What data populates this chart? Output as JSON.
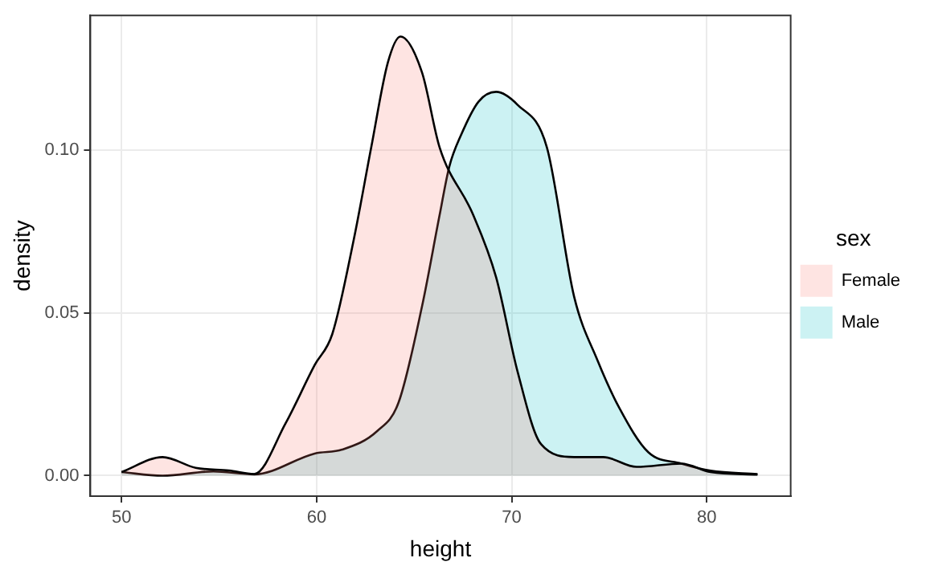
{
  "chart_data": {
    "type": "area",
    "xlabel": "height",
    "ylabel": "density",
    "legend_title": "sex",
    "legend": "right",
    "grid": true,
    "marker": "none",
    "line_style": "solid",
    "xlim": [
      48.4,
      84.3
    ],
    "ylim": [
      -0.0063,
      0.1415
    ],
    "xticks": [
      50,
      60,
      70,
      80
    ],
    "yticks": [
      {
        "value": 0,
        "label": "0.00"
      },
      {
        "value": 0.05,
        "label": "0.05"
      },
      {
        "value": 0.1,
        "label": "0.10"
      }
    ],
    "series": [
      {
        "name": "Female",
        "color": "#F8766D",
        "x": [
          50.0,
          52.1,
          53.8,
          55.5,
          56.8,
          58.4,
          59.9,
          60.8,
          61.9,
          62.8,
          63.65,
          64.3,
          65.4,
          66.3,
          68.0,
          69.2,
          70.3,
          71.5,
          73.2,
          74.7,
          76.4,
          78.7,
          80.2,
          82.6
        ],
        "values": [
          0.0011,
          0.0057,
          0.0024,
          0.0016,
          0.0005,
          0.016,
          0.034,
          0.0435,
          0.0725,
          0.101,
          0.127,
          0.135,
          0.124,
          0.101,
          0.0805,
          0.061,
          0.032,
          0.0097,
          0.0057,
          0.0057,
          0.0027,
          0.0037,
          0.0011,
          0.0003
        ]
      },
      {
        "name": "Male",
        "color": "#00BFC4",
        "x": [
          50.0,
          52.1,
          54.7,
          56.8,
          59.9,
          61.3,
          63.1,
          64.2,
          65.4,
          66.3,
          66.8,
          67.4,
          68.3,
          69.2,
          70.3,
          71.8,
          73.2,
          74.4,
          75.5,
          77.0,
          78.7,
          80.2,
          82.6
        ],
        "values": [
          0.0011,
          0.0,
          0.0013,
          0.0004,
          0.0068,
          0.008,
          0.0137,
          0.0225,
          0.052,
          0.08,
          0.095,
          0.1047,
          0.115,
          0.118,
          0.114,
          0.101,
          0.055,
          0.0354,
          0.021,
          0.0072,
          0.0037,
          0.0015,
          0.0005
        ]
      }
    ]
  }
}
